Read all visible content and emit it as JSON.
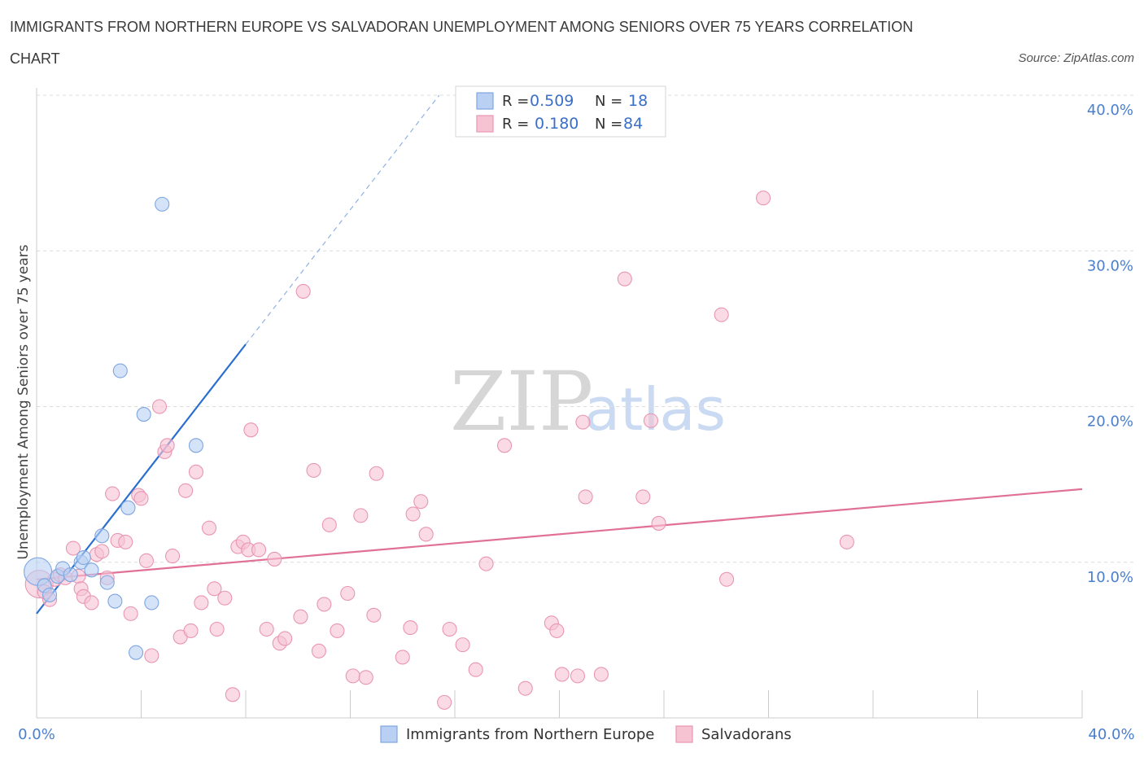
{
  "title_line1": "IMMIGRANTS FROM NORTHERN EUROPE VS SALVADORAN UNEMPLOYMENT AMONG SENIORS OVER 75 YEARS CORRELATION",
  "title_line2": "CHART",
  "source": "Source: ZipAtlas.com",
  "watermark": {
    "zip": "ZIP",
    "atlas": "atlas"
  },
  "legend": {
    "r_label": "R =",
    "n_label": "N =",
    "series": [
      {
        "r": "0.509",
        "n": "18"
      },
      {
        "r": "0.180",
        "n": "84"
      }
    ]
  },
  "bottom_legend": [
    "Immigrants from Northern Europe",
    "Salvadorans"
  ],
  "colors": {
    "blue_fill": "#b9d0f3",
    "blue_stroke": "#7ea6e0",
    "blue_line": "#2a6fd0",
    "pink_fill": "#f6c3d3",
    "pink_stroke": "#e995b2",
    "pink_line": "#e07098",
    "grid": "#dcdcdc",
    "axis": "#cccccc"
  },
  "chart_data": {
    "type": "scatter",
    "title": "IMMIGRANTS FROM NORTHERN EUROPE VS SALVADORAN UNEMPLOYMENT AMONG SENIORS OVER 75 YEARS CORRELATION CHART",
    "xlabel": "",
    "ylabel": "Unemployment Among Seniors over 75 years",
    "xlim": [
      0,
      40
    ],
    "ylim": [
      0,
      40
    ],
    "x_tick_labels": [
      "0.0%",
      "40.0%"
    ],
    "y_ticks": [
      10,
      20,
      30,
      40
    ],
    "y_tick_labels": [
      "10.0%",
      "20.0%",
      "30.0%",
      "40.0%"
    ],
    "grid": true,
    "legend_position": "top-center",
    "series": [
      {
        "name": "Immigrants from Northern Europe",
        "color": "blue",
        "R": 0.509,
        "N": 18,
        "points": [
          {
            "x": 0.05,
            "y": 9.4,
            "big": true
          },
          {
            "x": 0.3,
            "y": 8.5
          },
          {
            "x": 0.5,
            "y": 7.9
          },
          {
            "x": 0.8,
            "y": 9.1
          },
          {
            "x": 1.0,
            "y": 9.6
          },
          {
            "x": 1.3,
            "y": 9.2
          },
          {
            "x": 1.7,
            "y": 10.0
          },
          {
            "x": 1.8,
            "y": 10.3
          },
          {
            "x": 2.1,
            "y": 9.5
          },
          {
            "x": 2.5,
            "y": 11.7
          },
          {
            "x": 2.7,
            "y": 8.7
          },
          {
            "x": 3.0,
            "y": 7.5
          },
          {
            "x": 3.5,
            "y": 13.5
          },
          {
            "x": 3.8,
            "y": 4.2
          },
          {
            "x": 3.2,
            "y": 22.3
          },
          {
            "x": 4.1,
            "y": 19.5
          },
          {
            "x": 4.4,
            "y": 7.4
          },
          {
            "x": 4.8,
            "y": 33.0
          },
          {
            "x": 6.1,
            "y": 17.5
          }
        ],
        "trend": {
          "x0": 0,
          "y0": 6.7,
          "x1": 8.0,
          "y1": 24.0,
          "dash_to_x": 15.4,
          "dash_to_y": 40.0
        }
      },
      {
        "name": "Salvadorans",
        "color": "pink",
        "R": 0.18,
        "N": 84,
        "points": [
          {
            "x": 0.1,
            "y": 8.6,
            "big": true
          },
          {
            "x": 0.3,
            "y": 8.1
          },
          {
            "x": 0.5,
            "y": 7.6
          },
          {
            "x": 0.7,
            "y": 8.9
          },
          {
            "x": 0.9,
            "y": 9.2
          },
          {
            "x": 1.1,
            "y": 9.0
          },
          {
            "x": 1.4,
            "y": 10.9
          },
          {
            "x": 1.6,
            "y": 9.1
          },
          {
            "x": 1.7,
            "y": 8.3
          },
          {
            "x": 1.8,
            "y": 7.8
          },
          {
            "x": 2.1,
            "y": 7.4
          },
          {
            "x": 2.3,
            "y": 10.5
          },
          {
            "x": 2.5,
            "y": 10.7
          },
          {
            "x": 2.7,
            "y": 9.0
          },
          {
            "x": 2.9,
            "y": 14.4
          },
          {
            "x": 3.1,
            "y": 11.4
          },
          {
            "x": 3.4,
            "y": 11.3
          },
          {
            "x": 3.6,
            "y": 6.7
          },
          {
            "x": 3.9,
            "y": 14.3
          },
          {
            "x": 4.0,
            "y": 14.1
          },
          {
            "x": 4.2,
            "y": 10.1
          },
          {
            "x": 4.4,
            "y": 4.0
          },
          {
            "x": 4.7,
            "y": 20.0
          },
          {
            "x": 4.9,
            "y": 17.1
          },
          {
            "x": 5.0,
            "y": 17.5
          },
          {
            "x": 5.2,
            "y": 10.4
          },
          {
            "x": 5.5,
            "y": 5.2
          },
          {
            "x": 5.7,
            "y": 14.6
          },
          {
            "x": 5.9,
            "y": 5.6
          },
          {
            "x": 6.1,
            "y": 15.8
          },
          {
            "x": 6.3,
            "y": 7.4
          },
          {
            "x": 6.6,
            "y": 12.2
          },
          {
            "x": 6.8,
            "y": 8.3
          },
          {
            "x": 6.9,
            "y": 5.7
          },
          {
            "x": 7.2,
            "y": 7.7
          },
          {
            "x": 7.5,
            "y": 1.5
          },
          {
            "x": 7.7,
            "y": 11.0
          },
          {
            "x": 7.9,
            "y": 11.3
          },
          {
            "x": 8.1,
            "y": 10.8
          },
          {
            "x": 8.2,
            "y": 18.5
          },
          {
            "x": 8.5,
            "y": 10.8
          },
          {
            "x": 8.8,
            "y": 5.7
          },
          {
            "x": 9.1,
            "y": 10.2
          },
          {
            "x": 9.3,
            "y": 4.8
          },
          {
            "x": 9.5,
            "y": 5.1
          },
          {
            "x": 10.1,
            "y": 6.5
          },
          {
            "x": 10.2,
            "y": 27.4
          },
          {
            "x": 10.6,
            "y": 15.9
          },
          {
            "x": 10.8,
            "y": 4.3
          },
          {
            "x": 11.0,
            "y": 7.3
          },
          {
            "x": 11.2,
            "y": 12.4
          },
          {
            "x": 11.5,
            "y": 5.6
          },
          {
            "x": 11.9,
            "y": 8.0
          },
          {
            "x": 12.1,
            "y": 2.7
          },
          {
            "x": 12.4,
            "y": 13.0
          },
          {
            "x": 12.6,
            "y": 2.6
          },
          {
            "x": 12.9,
            "y": 6.6
          },
          {
            "x": 13.0,
            "y": 15.7
          },
          {
            "x": 14.0,
            "y": 3.9
          },
          {
            "x": 14.3,
            "y": 5.8
          },
          {
            "x": 14.4,
            "y": 13.1
          },
          {
            "x": 14.7,
            "y": 13.9
          },
          {
            "x": 14.9,
            "y": 11.8
          },
          {
            "x": 15.6,
            "y": 1.0
          },
          {
            "x": 15.8,
            "y": 5.7
          },
          {
            "x": 16.3,
            "y": 4.7
          },
          {
            "x": 16.8,
            "y": 3.1
          },
          {
            "x": 17.2,
            "y": 9.9
          },
          {
            "x": 17.9,
            "y": 17.5
          },
          {
            "x": 18.7,
            "y": 1.9
          },
          {
            "x": 19.7,
            "y": 6.1
          },
          {
            "x": 19.9,
            "y": 5.6
          },
          {
            "x": 20.1,
            "y": 2.8
          },
          {
            "x": 20.7,
            "y": 2.7
          },
          {
            "x": 20.9,
            "y": 19.0
          },
          {
            "x": 21.0,
            "y": 14.2
          },
          {
            "x": 21.6,
            "y": 2.8
          },
          {
            "x": 22.5,
            "y": 28.2
          },
          {
            "x": 23.2,
            "y": 14.2
          },
          {
            "x": 23.5,
            "y": 19.1
          },
          {
            "x": 23.8,
            "y": 12.5
          },
          {
            "x": 26.2,
            "y": 25.9
          },
          {
            "x": 26.4,
            "y": 8.9
          },
          {
            "x": 27.8,
            "y": 33.4
          },
          {
            "x": 31.0,
            "y": 11.3
          }
        ],
        "trend": {
          "x0": 0,
          "y0": 8.9,
          "x1": 40.0,
          "y1": 14.7
        }
      }
    ]
  }
}
